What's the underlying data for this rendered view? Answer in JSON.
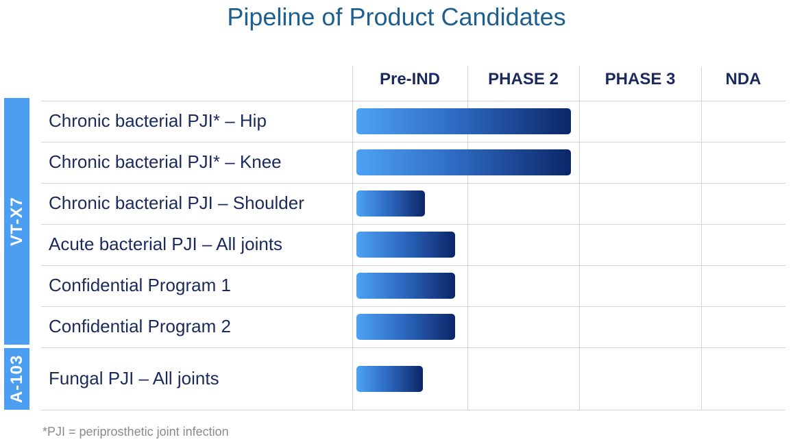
{
  "title": "Pipeline of Product Candidates",
  "phases": [
    "Pre-IND",
    "PHASE 2",
    "PHASE 3",
    "NDA"
  ],
  "groups": [
    {
      "label": "VT-X7"
    },
    {
      "label": "A-103"
    }
  ],
  "rows": [
    {
      "label": "Chronic bacterial PJI* – Hip",
      "group": "VT-X7",
      "progress": 0.5
    },
    {
      "label": "Chronic bacterial PJI* – Knee",
      "group": "VT-X7",
      "progress": 0.5
    },
    {
      "label": "Chronic bacterial PJI – Shoulder",
      "group": "VT-X7",
      "progress": 0.16
    },
    {
      "label": "Acute bacterial PJI – All joints",
      "group": "VT-X7",
      "progress": 0.23
    },
    {
      "label": "Confidential Program 1",
      "group": "VT-X7",
      "progress": 0.23
    },
    {
      "label": "Confidential Program 2",
      "group": "VT-X7",
      "progress": 0.23
    },
    {
      "label": "Fungal PJI – All joints",
      "group": "A-103",
      "progress": 0.155
    }
  ],
  "footnote": "*PJI = periprosthetic joint infection",
  "chart_data": {
    "type": "bar",
    "orientation": "horizontal",
    "title": "Pipeline of Product Candidates",
    "x_axis_categories": [
      "Pre-IND",
      "PHASE 2",
      "PHASE 3",
      "NDA"
    ],
    "categories": [
      "Chronic bacterial PJI* – Hip",
      "Chronic bacterial PJI* – Knee",
      "Chronic bacterial PJI – Shoulder",
      "Acute bacterial PJI – All joints",
      "Confidential Program 1",
      "Confidential Program 2",
      "Fungal PJI – All joints"
    ],
    "values": [
      0.5,
      0.5,
      0.16,
      0.23,
      0.23,
      0.23,
      0.155
    ],
    "value_unit": "fraction of pipeline width (Pre-IND to NDA)",
    "grid": true,
    "bar_colors": [
      "#4da2f4",
      "#0b2668"
    ],
    "group_color": "#4c9ff0",
    "title_color": "#1d5f8f",
    "text_color": "#1a2a5e"
  }
}
